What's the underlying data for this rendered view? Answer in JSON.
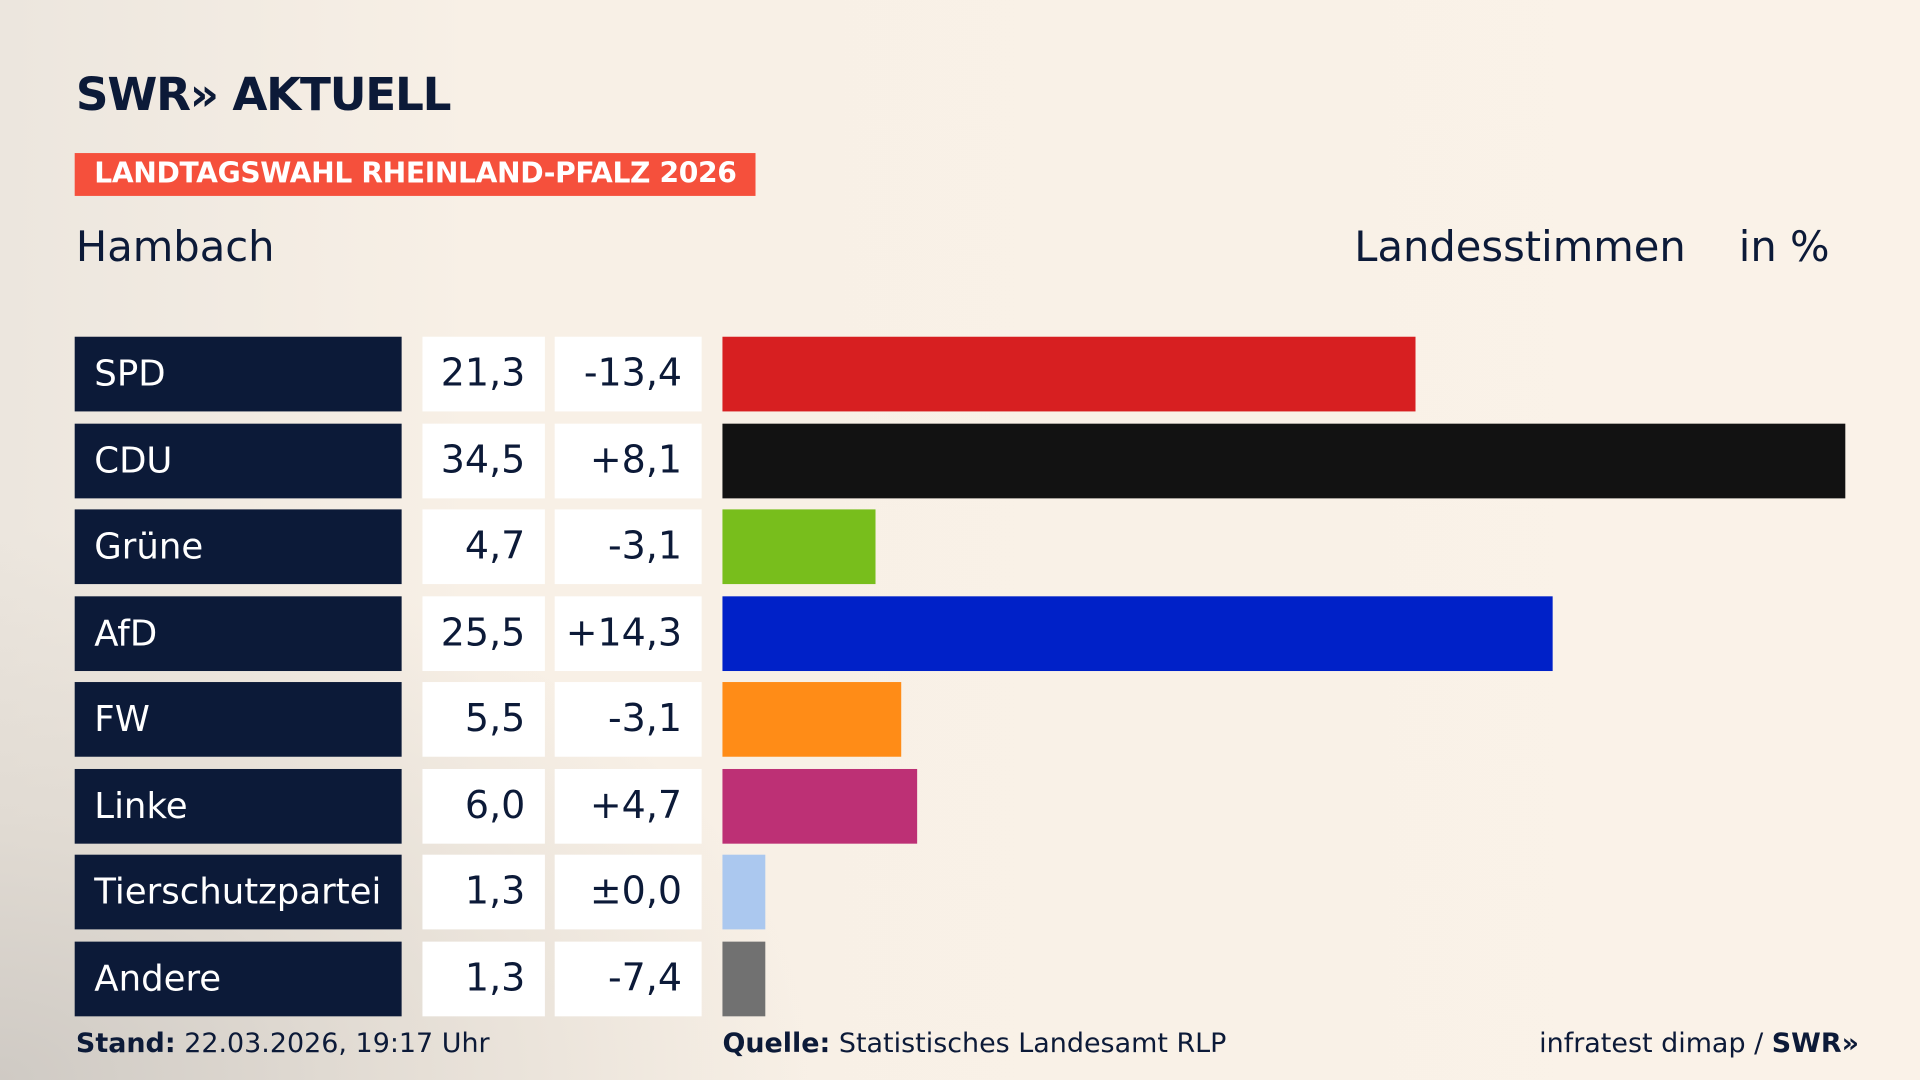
{
  "header": {
    "logo": "SWR» AKTUELL",
    "banner": "LANDTAGSWAHL RHEINLAND-PFALZ 2026",
    "place": "Hambach",
    "vote_type": "Landesstimmen",
    "unit": "in %"
  },
  "chart_data": {
    "type": "bar",
    "orientation": "horizontal",
    "categories": [
      "SPD",
      "CDU",
      "Grüne",
      "AfD",
      "FW",
      "Linke",
      "Tierschutzpartei",
      "Andere"
    ],
    "values": [
      21.3,
      34.5,
      4.7,
      25.5,
      5.5,
      6.0,
      1.3,
      1.3
    ],
    "value_labels": [
      "21,3",
      "34,5",
      "4,7",
      "25,5",
      "5,5",
      "6,0",
      "1,3",
      "1,3"
    ],
    "diff_labels": [
      "-13,4",
      "+8,1",
      "-3,1",
      "+14,3",
      "-3,1",
      "+4,7",
      "±0,0",
      "-7,4"
    ],
    "colors": [
      "#d71f21",
      "#121212",
      "#78be1c",
      "#0021c8",
      "#ff8c17",
      "#bd3075",
      "#abc8ef",
      "#717171"
    ],
    "xlim": [
      0,
      34.5
    ],
    "grid": false
  },
  "footer": {
    "stand_label": "Stand:",
    "stand_value": "22.03.2026, 19:17 Uhr",
    "source_label": "Quelle:",
    "source_value": "Statistisches Landesamt RLP",
    "credit": "infratest dimap /",
    "credit_logo": "SWR»"
  }
}
